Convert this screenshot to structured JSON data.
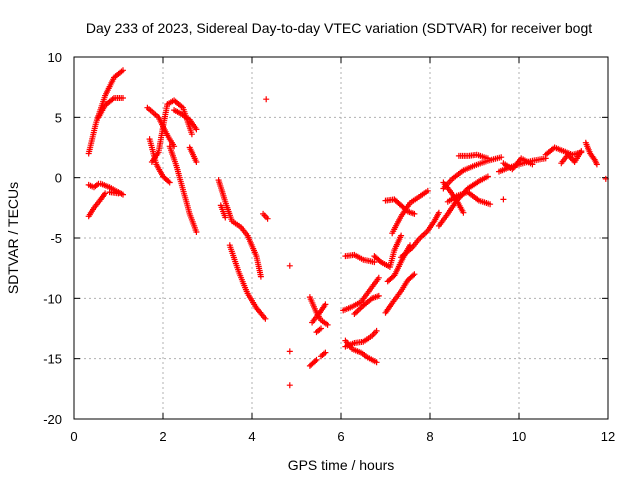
{
  "chart_data": {
    "type": "scatter",
    "title": "Day 233 of 2023, Sidereal Day-to-day VTEC variation (SDTVAR) for receiver bogt",
    "xlabel": "GPS time / hours",
    "ylabel": "SDTVAR / TECUs",
    "xlim": [
      0,
      12
    ],
    "ylim": [
      -20,
      10
    ],
    "xticks": [
      "0",
      "2",
      "4",
      "6",
      "8",
      "10",
      "12"
    ],
    "yticks": [
      "10",
      "5",
      "0",
      "-5",
      "-10",
      "-15",
      "-20"
    ],
    "grid": true,
    "marker": "plus",
    "color": "#ff0000",
    "segments": [
      {
        "x": [
          0.33,
          0.5,
          0.7,
          0.9,
          1.1
        ],
        "y": [
          2.0,
          4.6,
          6.8,
          8.3,
          8.9
        ]
      },
      {
        "x": [
          0.55,
          0.7,
          0.9,
          1.1
        ],
        "y": [
          5.0,
          6.0,
          6.6,
          6.6
        ]
      },
      {
        "x": [
          0.33,
          0.45,
          0.55
        ],
        "y": [
          -0.6,
          -0.8,
          -0.5
        ]
      },
      {
        "x": [
          0.6,
          0.8,
          1.0,
          1.1
        ],
        "y": [
          -0.5,
          -0.8,
          -1.2,
          -1.4
        ]
      },
      {
        "x": [
          0.33,
          0.45,
          0.6,
          0.7
        ],
        "y": [
          -3.2,
          -2.5,
          -1.8,
          -1.3
        ]
      },
      {
        "x": [
          0.8,
          1.0
        ],
        "y": [
          -1.2,
          -1.3
        ]
      },
      {
        "x": [
          1.65,
          1.9,
          2.1,
          2.25
        ],
        "y": [
          5.8,
          5.0,
          3.5,
          2.6
        ]
      },
      {
        "x": [
          1.75,
          1.9,
          2.0,
          2.1,
          2.25,
          2.45,
          2.65
        ],
        "y": [
          1.3,
          2.1,
          4.2,
          6.1,
          6.4,
          5.8,
          3.6
        ]
      },
      {
        "x": [
          1.7,
          1.85,
          2.0,
          2.15
        ],
        "y": [
          3.2,
          1.1,
          0.1,
          -0.4
        ]
      },
      {
        "x": [
          2.15,
          2.3,
          2.45,
          2.6,
          2.75
        ],
        "y": [
          2.6,
          1.0,
          -1.0,
          -3.0,
          -4.5
        ]
      },
      {
        "x": [
          2.25,
          2.4,
          2.6,
          2.75
        ],
        "y": [
          5.6,
          5.3,
          4.8,
          4.0
        ]
      },
      {
        "x": [
          2.6,
          2.75
        ],
        "y": [
          2.5,
          1.3
        ]
      },
      {
        "x": [
          3.25,
          3.4,
          3.55,
          3.75,
          3.9,
          4.1,
          4.2
        ],
        "y": [
          -0.2,
          -2.0,
          -3.6,
          -4.1,
          -4.8,
          -6.5,
          -8.2
        ]
      },
      {
        "x": [
          3.3,
          3.4
        ],
        "y": [
          -2.3,
          -3.3
        ]
      },
      {
        "x": [
          3.5,
          3.7,
          3.9,
          4.1,
          4.3
        ],
        "y": [
          -5.6,
          -7.8,
          -9.6,
          -10.8,
          -11.7
        ]
      },
      {
        "x": [
          4.25,
          4.35
        ],
        "y": [
          -3.0,
          -3.4
        ]
      },
      {
        "x": [
          4.32
        ],
        "y": [
          6.5
        ]
      },
      {
        "x": [
          4.85
        ],
        "y": [
          -7.3
        ]
      },
      {
        "x": [
          4.85
        ],
        "y": [
          -14.4
        ]
      },
      {
        "x": [
          4.85
        ],
        "y": [
          -17.2
        ]
      },
      {
        "x": [
          5.3,
          5.45,
          5.55,
          5.7
        ],
        "y": [
          -9.9,
          -11.2,
          -11.8,
          -12.2
        ]
      },
      {
        "x": [
          5.35,
          5.5,
          5.65
        ],
        "y": [
          -12.0,
          -11.3,
          -10.5
        ]
      },
      {
        "x": [
          5.3,
          5.45
        ],
        "y": [
          -15.6,
          -15.1
        ]
      },
      {
        "x": [
          5.55,
          5.65
        ],
        "y": [
          -14.8,
          -14.5
        ]
      },
      {
        "x": [
          5.45,
          5.55
        ],
        "y": [
          -12.8,
          -12.5
        ]
      },
      {
        "x": [
          6.1,
          6.3,
          6.5,
          6.75
        ],
        "y": [
          -6.5,
          -6.4,
          -6.8,
          -7.0
        ]
      },
      {
        "x": [
          6.05,
          6.25,
          6.45,
          6.65,
          6.85
        ],
        "y": [
          -11.0,
          -10.7,
          -10.3,
          -9.3,
          -8.3
        ]
      },
      {
        "x": [
          6.1,
          6.25,
          6.45,
          6.6,
          6.8
        ],
        "y": [
          -13.5,
          -14.2,
          -14.5,
          -14.9,
          -15.3
        ]
      },
      {
        "x": [
          6.1,
          6.3,
          6.5,
          6.7,
          6.8
        ],
        "y": [
          -14.0,
          -13.7,
          -13.6,
          -13.1,
          -12.7
        ]
      },
      {
        "x": [
          6.3,
          6.5,
          6.7,
          6.85
        ],
        "y": [
          -11.3,
          -10.6,
          -10.0,
          -9.8
        ]
      },
      {
        "x": [
          6.75,
          6.9,
          7.1,
          7.2,
          7.35
        ],
        "y": [
          -6.5,
          -7.0,
          -7.4,
          -6.0,
          -4.8
        ]
      },
      {
        "x": [
          7.0,
          7.15,
          7.35,
          7.5,
          7.65
        ],
        "y": [
          -11.2,
          -10.4,
          -9.4,
          -8.5,
          -8.0
        ]
      },
      {
        "x": [
          7.05,
          7.2,
          7.4,
          7.55
        ],
        "y": [
          -8.6,
          -8.1,
          -6.6,
          -5.6
        ]
      },
      {
        "x": [
          7.15,
          7.35,
          7.55,
          7.75,
          7.95
        ],
        "y": [
          -4.6,
          -3.2,
          -2.1,
          -1.6,
          -1.1
        ]
      },
      {
        "x": [
          7.35,
          7.6,
          7.75,
          7.95,
          8.1,
          8.2
        ],
        "y": [
          -6.6,
          -5.8,
          -5.1,
          -4.4,
          -3.6,
          -2.9
        ]
      },
      {
        "x": [
          7.0,
          7.2,
          7.35,
          7.5,
          7.65
        ],
        "y": [
          -1.9,
          -1.8,
          -2.3,
          -2.8,
          -3.0
        ]
      },
      {
        "x": [
          8.2,
          8.4,
          8.6,
          8.85,
          9.1,
          9.3
        ],
        "y": [
          -4.0,
          -3.0,
          -1.9,
          -0.9,
          -0.3,
          0.1
        ]
      },
      {
        "x": [
          8.3,
          8.5,
          8.75,
          9.0,
          9.3,
          9.6
        ],
        "y": [
          -0.9,
          -0.1,
          0.6,
          1.0,
          1.4,
          1.7
        ]
      },
      {
        "x": [
          8.4,
          8.6,
          8.85,
          9.1,
          9.35
        ],
        "y": [
          -2.0,
          -1.5,
          -1.2,
          -1.9,
          -2.2
        ]
      },
      {
        "x": [
          8.3,
          8.45,
          8.6,
          8.75
        ],
        "y": [
          -0.4,
          -1.1,
          -1.9,
          -2.9
        ]
      },
      {
        "x": [
          8.65,
          8.85,
          9.05,
          9.3
        ],
        "y": [
          1.8,
          1.8,
          1.9,
          1.6
        ]
      },
      {
        "x": [
          9.55,
          9.75,
          10.0,
          10.3,
          10.6
        ],
        "y": [
          0.5,
          0.8,
          1.1,
          1.4,
          1.6
        ]
      },
      {
        "x": [
          9.65
        ],
        "y": [
          -1.8
        ]
      },
      {
        "x": [
          9.65,
          9.85,
          10.05,
          10.3
        ],
        "y": [
          1.2,
          0.7,
          1.6,
          1.1
        ]
      },
      {
        "x": [
          10.6,
          10.8,
          11.0,
          11.2,
          11.4
        ],
        "y": [
          1.9,
          2.5,
          2.2,
          1.9,
          2.1
        ]
      },
      {
        "x": [
          10.95,
          11.1,
          11.25,
          11.4
        ],
        "y": [
          1.2,
          1.9,
          1.3,
          2.2
        ]
      },
      {
        "x": [
          11.5,
          11.6,
          11.7,
          11.75
        ],
        "y": [
          2.9,
          2.0,
          1.5,
          1.1
        ]
      },
      {
        "x": [
          11.95
        ],
        "y": [
          -0.1
        ]
      }
    ]
  }
}
